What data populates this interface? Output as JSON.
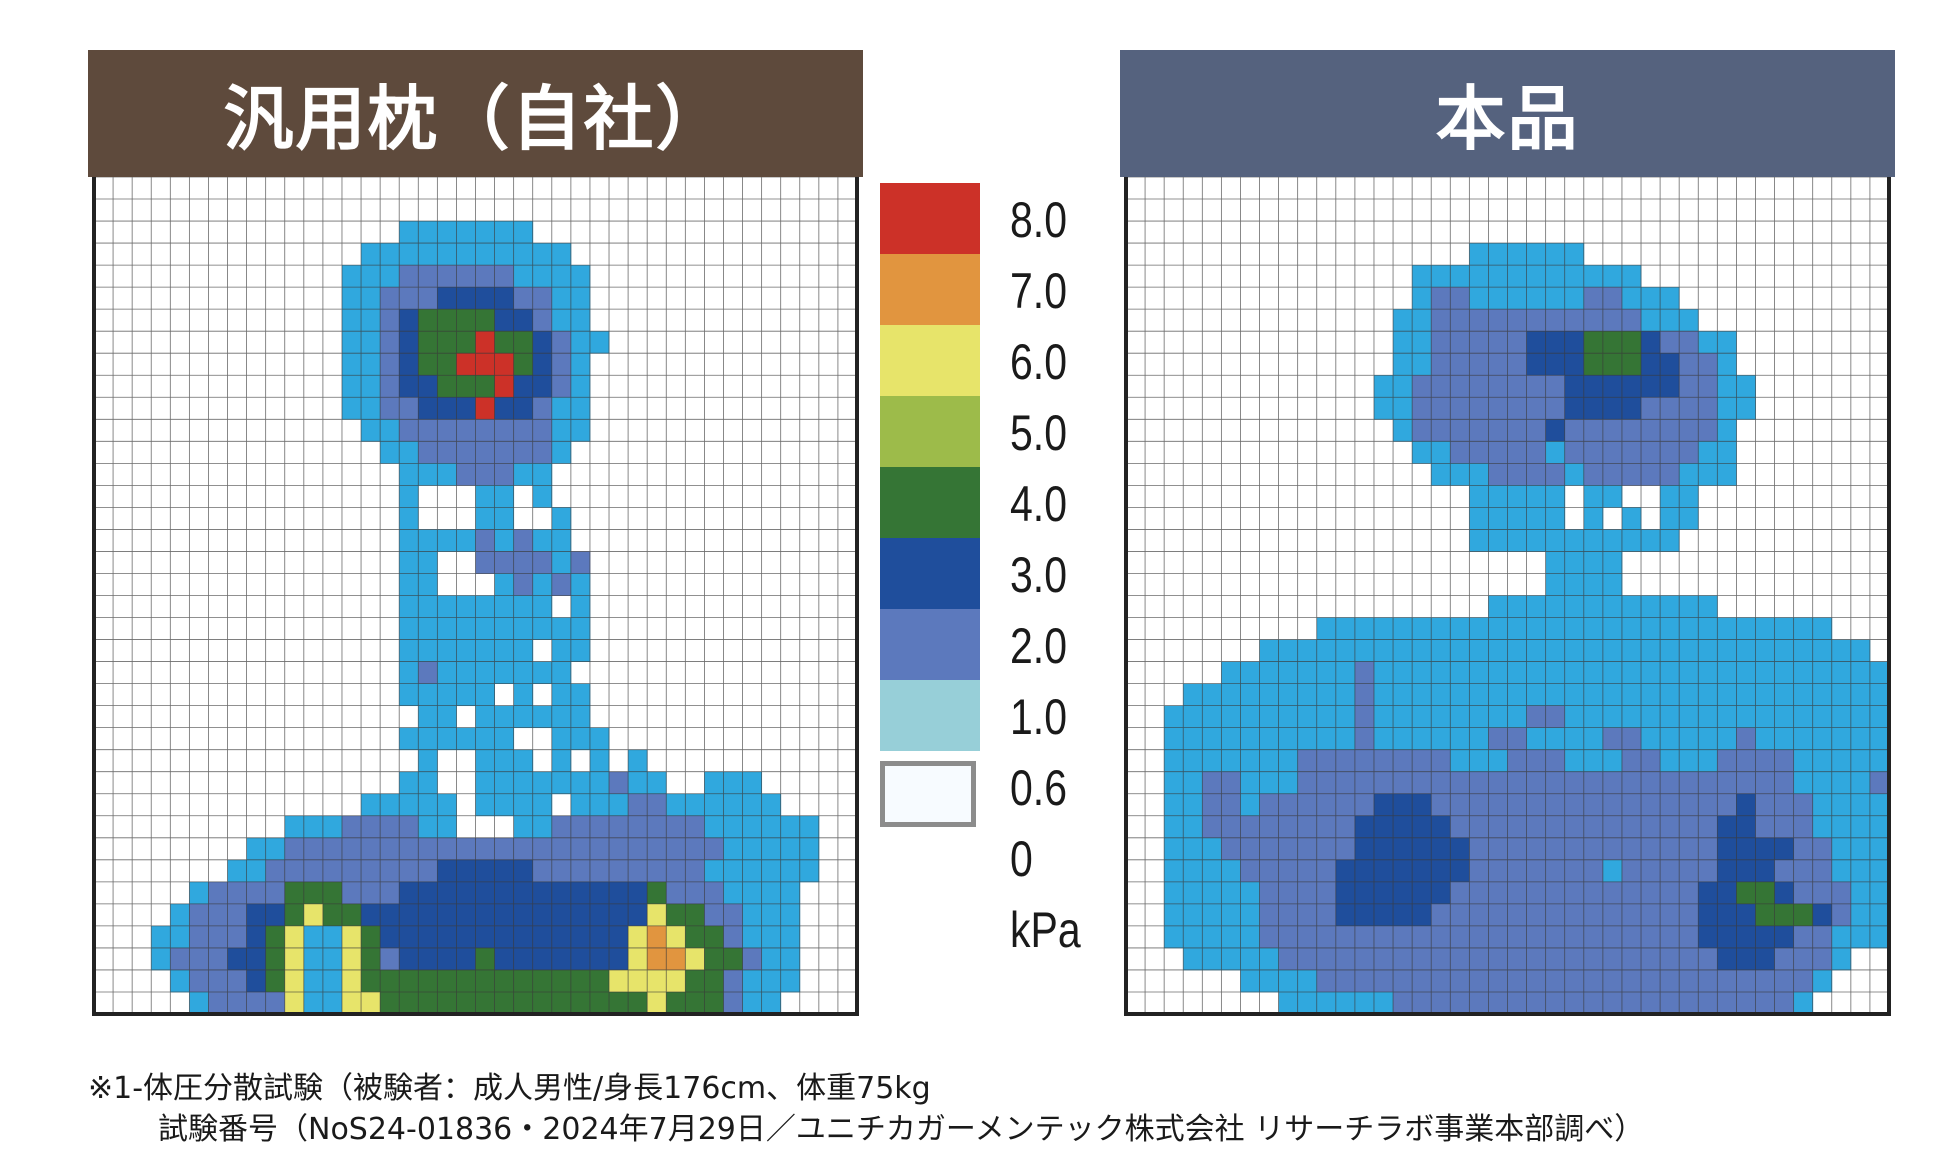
{
  "chart_data": {
    "type": "heatmap",
    "unit": "kPa",
    "colors": {
      "left_header_bg": "#5e4a3c",
      "right_header_bg": "#55627e",
      "grid_line": "#3a3a3a",
      "cell_blank": "#ffffff"
    },
    "legend": {
      "tick_labels": [
        "8.0",
        "7.0",
        "6.0",
        "5.0",
        "4.0",
        "3.0",
        "2.0",
        "1.0",
        "0.6",
        "0"
      ],
      "unit_label": "kPa",
      "levels": [
        {
          "min": 7.0,
          "max": 8.0,
          "color": "#cc3128"
        },
        {
          "min": 6.0,
          "max": 7.0,
          "color": "#e1953f"
        },
        {
          "min": 5.0,
          "max": 6.0,
          "color": "#e7e46a"
        },
        {
          "min": 4.0,
          "max": 5.0,
          "color": "#9dbb4a"
        },
        {
          "min": 3.0,
          "max": 4.0,
          "color": "#357535"
        },
        {
          "min": 2.0,
          "max": 3.0,
          "color": "#1f4e9c"
        },
        {
          "min": 1.0,
          "max": 2.0,
          "color": "#5c79bd"
        },
        {
          "min": 0.6,
          "max": 1.0,
          "color": "#97cfd8"
        },
        {
          "min": 0,
          "max": 0.6,
          "color": "#f7fbff"
        }
      ]
    },
    "panels": [
      {
        "title": "汎用枕（自社）",
        "rows": [
          "........................................",
          "........................................",
          "................rrrrrrr.................",
          "..............rrrrrrrrrrr...............",
          ".............rrrmmmmmmrrrr..............",
          ".............rrmmmddddmmrr..............",
          ".............rrmdggggddmrr..............",
          ".............rrmdgggwggdmrr.............",
          ".............rrmdggwwwgdmr..............",
          ".............rrmddgggwddmr..............",
          ".............rrmmdddwddmrr..............",
          "..............rrmmmmmmmmrr..............",
          "...............rrmmmmmmmr...............",
          "................rrrmmmrr................",
          "................r...rr.r................",
          "................r...rr..r...............",
          "................rrrrmrmrr...............",
          "................rr..mmmmrm..............",
          "................rr...rmrmr..............",
          "................rrrrrrrr.r..............",
          "................rrrrrrrrrr..............",
          "................rrrrrrr.rr..............",
          "................rmrrrrrrr...............",
          "................rrrrr.r.rr..............",
          ".................rr.rrrrrr..............",
          "................rrrrrr..rrr.............",
          ".................r..rrr.r.r.r...........",
          "................rr..rrrrrrrmrr..rrr.....",
          "..............rrrrr.rrrr.rrrmmrrrrrr....",
          "..........rrrmmmmrr...rrmmmmmmmmrrrrrr..",
          "........rrmmmmmmmmmmmmmmmmmmmmmmmrrrrr..",
          ".......rrmmmmmmmmmdddddmmmmmmmmmrrrrrr..",
          ".....rmmmmgggmmmdddddddddddddgmmmrrrr...",
          "....rmmmddgyggdddddddddddddddyggmmrrr...",
          "...rrmmmdgyrrygdddddddddddddyoyggmrrr...",
          "...rmmmddgyrrygmddddgdddddddyooyggmrr...",
          "....rmmmdgyrrygggggggggggggyyyyggmrrr...",
          ".....rmmmmyrryyggggggggggggggygggmrr...."
        ]
      },
      {
        "title": "本品",
        "rows": [
          "........................................",
          "........................................",
          "........................................",
          "..................rrrrrr................",
          "...............rrrrrrrrrrrr.............",
          "...............rmmrrrrrrmmrrr...........",
          "..............rrmmmmmmmmmmmrrr..........",
          "..............rrmmmmmdddgggdmmrr........",
          "..............rrmmmmmdddgggddmmr........",
          ".............rrmmmmmmmmddddddmmrr.......",
          ".............rrmmmmmmmmddddmmmmrr.......",
          "..............rmmmmmmmdmmmmmmmmr........",
          "...............rrmmmmmrmmmmmmmrr........",
          "................rrrmmmmrmmmmmrrr........",
          "..................rrrrr.rr..rr..........",
          "..................rrrrr.r.r.rr..........",
          "..................rrrrrrrrrrr...........",
          "......................rrrr..............",
          "......................rrrr..............",
          "...................rrrrrrrrrrrr.........",
          "..........rrrrrrrrrrrrrrrrrrrrrrrrrrr...",
          ".......rrrrrrrrrrrrrrrrrrrrrrrrrrrrrrrr.",
          ".....rrrrrrrmrrrrrrrrrrrrrrrrrrrrrrrrrrr",
          "...rrrrrrrrrmrrrrrrrrrrrrrrrrrrrrrrrrrrr",
          "..rrrrrrrrrrmrrrrrrrrmmrrrrrrrrrrrrrrrrr",
          "..rrrrrrrrrrmrrrrrrmmrrrrmmrrrrrmrrrrrrr",
          "..rrrrrrrmmmmmmmmrrrmmmrrrmmrrrmmmmrrrrr",
          "..rrmmrrrmmmmmmmmmmmmmmmmmmmmmmmmmmrrrrm",
          "..rrmmrmmmmmmdddmmmmmmmmmmmmmmmmdmmmrrrr",
          "..rrmmmmmmmmdddddmmmmmmmmmmmmmmddmmmrrrr",
          "..rrrmmmmmmmddddddmmmmmmmmmmmmmddddmmrrr",
          "..rrrrmmmmmdddddddmmmmmmmrmmmmmdddmmmrrr",
          "..rrrrrmmmmddddddmmmmmmmmmmmmmddggdmmmrr",
          "..rrrrrmmmmdddddmmmmmmmmmmmmmmdddgggdmrr",
          "..rrrrrmmmmmmmmmmmmmmmmmmmmmmmdddddmmrrr",
          "...rrrrrmmmmmmmmmmmmmmmmmmmmmmmdddmmmr..",
          "......rrrrmmmmmmmmmmmmmmmmmmmmmmmmmmr...",
          "........rrrrrrmmmmmmmmmmmmmmmmmmmmmr...."
        ]
      }
    ]
  },
  "footnote": {
    "line1": "※1-体圧分散試験（被験者：成人男性/身長176cm、体重75kg",
    "line2": "試験番号（NoS24-01836・2024年7月29日／ユニチカガーメンテック株式会社 リサーチラボ事業本部調べ）"
  }
}
